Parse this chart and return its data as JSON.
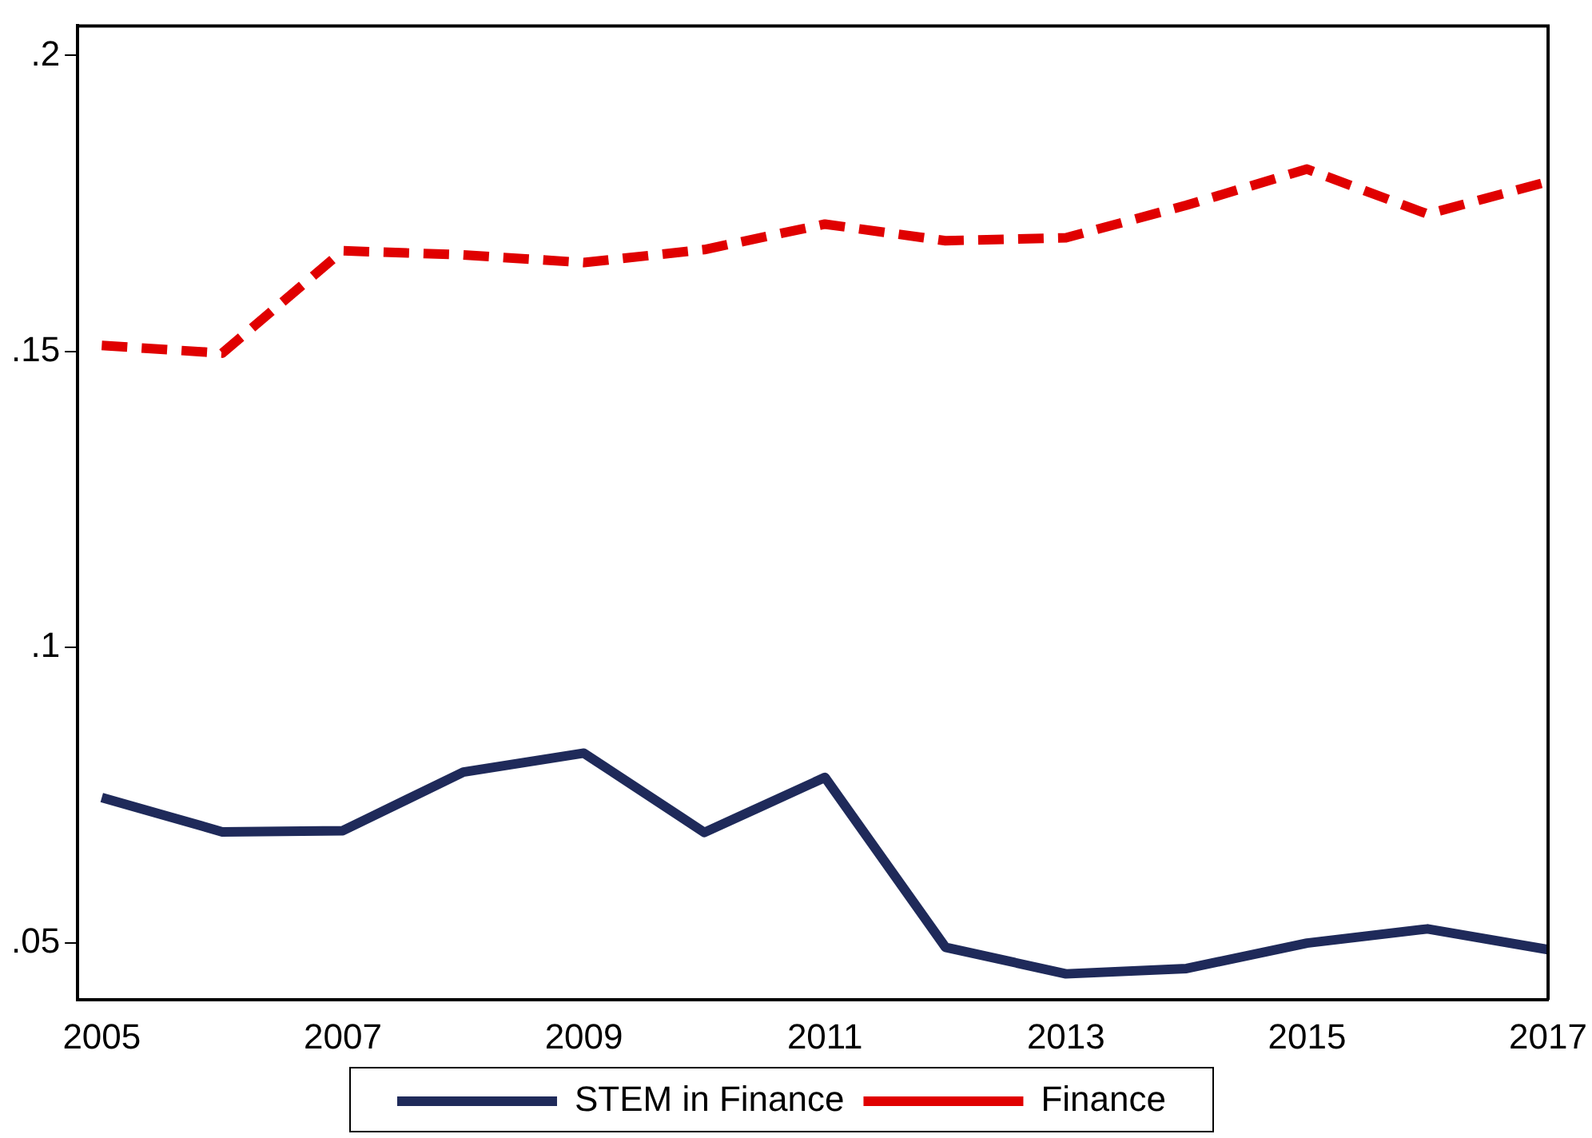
{
  "chart_data": {
    "type": "line",
    "x": [
      2005,
      2006,
      2007,
      2008,
      2009,
      2010,
      2011,
      2012,
      2013,
      2014,
      2015,
      2016,
      2017
    ],
    "series": [
      {
        "name": "STEM in Finance",
        "color": "#1f2a5a",
        "line_style": "solid",
        "values": [
          0.0746,
          0.0688,
          0.069,
          0.0789,
          0.0821,
          0.0687,
          0.078,
          0.0493,
          0.0448,
          0.0457,
          0.05,
          0.0524,
          0.0489
        ]
      },
      {
        "name": "Finance",
        "color": "#e00000",
        "line_style": "dashed",
        "values": [
          0.151,
          0.1497,
          0.167,
          0.1663,
          0.165,
          0.1672,
          0.1715,
          0.1687,
          0.1692,
          0.1747,
          0.1808,
          0.1732,
          0.1787
        ]
      }
    ],
    "xlim": [
      2004.8,
      2017
    ],
    "xticks": [
      2005,
      2007,
      2009,
      2011,
      2013,
      2015,
      2017
    ],
    "ylim": [
      0.0404,
      0.205
    ],
    "yticks": [
      {
        "value": 0.05,
        "label": ".05"
      },
      {
        "value": 0.1,
        "label": ".1"
      },
      {
        "value": 0.15,
        "label": ".15"
      },
      {
        "value": 0.2,
        "label": ".2"
      }
    ],
    "grid": false,
    "legend": "bottom",
    "marker": "none"
  }
}
